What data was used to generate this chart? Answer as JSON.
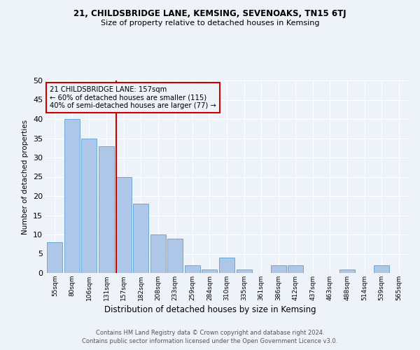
{
  "title1": "21, CHILDSBRIDGE LANE, KEMSING, SEVENOAKS, TN15 6TJ",
  "title2": "Size of property relative to detached houses in Kemsing",
  "xlabel": "Distribution of detached houses by size in Kemsing",
  "ylabel": "Number of detached properties",
  "bin_labels": [
    "55sqm",
    "80sqm",
    "106sqm",
    "131sqm",
    "157sqm",
    "182sqm",
    "208sqm",
    "233sqm",
    "259sqm",
    "284sqm",
    "310sqm",
    "335sqm",
    "361sqm",
    "386sqm",
    "412sqm",
    "437sqm",
    "463sqm",
    "488sqm",
    "514sqm",
    "539sqm",
    "565sqm"
  ],
  "bar_values": [
    8,
    40,
    35,
    33,
    25,
    18,
    10,
    9,
    2,
    1,
    4,
    1,
    0,
    2,
    2,
    0,
    0,
    1,
    0,
    2,
    0
  ],
  "bar_color": "#aec6e8",
  "bar_edge_color": "#5a9fd4",
  "vline_color": "#cc0000",
  "annotation_title": "21 CHILDSBRIDGE LANE: 157sqm",
  "annotation_line1": "← 60% of detached houses are smaller (115)",
  "annotation_line2": "40% of semi-detached houses are larger (77) →",
  "annotation_box_color": "#cc0000",
  "ylim": [
    0,
    50
  ],
  "yticks": [
    0,
    5,
    10,
    15,
    20,
    25,
    30,
    35,
    40,
    45,
    50
  ],
  "footer1": "Contains HM Land Registry data © Crown copyright and database right 2024.",
  "footer2": "Contains public sector information licensed under the Open Government Licence v3.0.",
  "bg_color": "#eef3f9",
  "grid_color": "#ffffff"
}
